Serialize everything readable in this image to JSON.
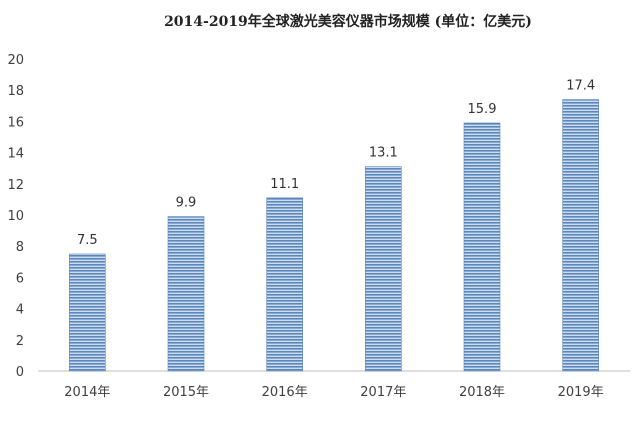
{
  "chart_data": {
    "type": "bar",
    "title": "2014-2019年全球激光美容仪器市场规模 (单位：亿美元)",
    "xlabel": "",
    "ylabel": "",
    "categories": [
      "2014年",
      "2015年",
      "2016年",
      "2017年",
      "2018年",
      "2019年"
    ],
    "values": [
      7.5,
      9.9,
      11.1,
      13.1,
      15.9,
      17.4
    ],
    "value_labels": [
      "7.5",
      "9.9",
      "11.1",
      "13.1",
      "15.9",
      "17.4"
    ],
    "ylim": [
      0,
      20
    ],
    "yticks": [
      0,
      2,
      4,
      6,
      8,
      10,
      12,
      14,
      16,
      18,
      20
    ],
    "ytick_labels": [
      "0",
      "2",
      "4",
      "6",
      "8",
      "10",
      "12",
      "14",
      "16",
      "18",
      "20"
    ],
    "grid": false,
    "legend": "none",
    "colors": {
      "bar_stripe_dark": "#5b87bd",
      "bar_stripe_light": "#cddcee",
      "axis": "#bfbfbf"
    }
  }
}
